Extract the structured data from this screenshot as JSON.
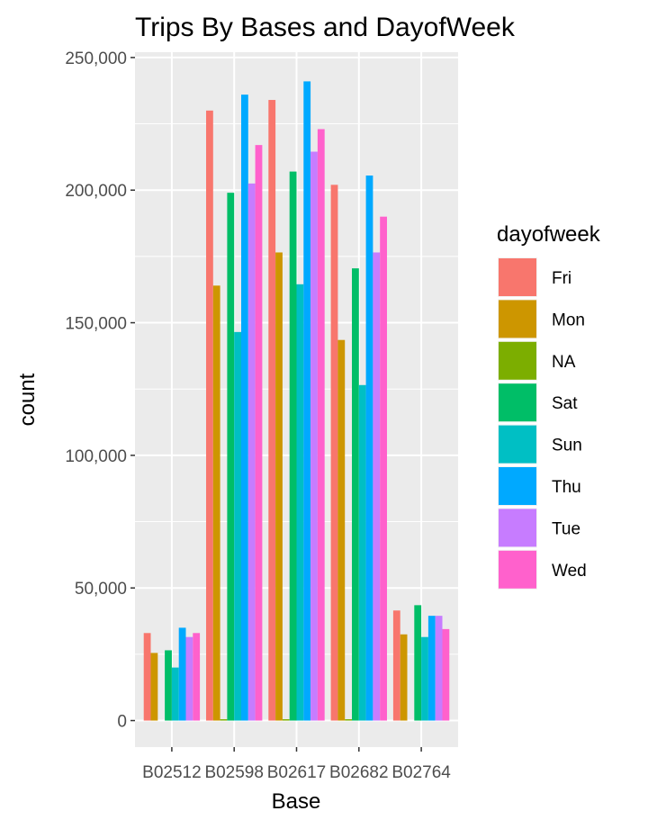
{
  "chart_data": {
    "type": "bar",
    "title": "Trips By Bases and DayofWeek",
    "xlabel": "Base",
    "ylabel": "count",
    "categories": [
      "B02512",
      "B02598",
      "B02617",
      "B02682",
      "B02764"
    ],
    "ylim": [
      -10000,
      252000
    ],
    "yticks": [
      0,
      50000,
      100000,
      150000,
      200000,
      250000
    ],
    "ytick_labels": [
      "0",
      "50,000",
      "100,000",
      "150,000",
      "200,000",
      "250,000"
    ],
    "grid": true,
    "legend_title": "dayofweek",
    "legend_position": "right",
    "series": [
      {
        "name": "Fri",
        "color": "#F8766D",
        "values": [
          33000,
          230000,
          234000,
          202000,
          41500
        ]
      },
      {
        "name": "Mon",
        "color": "#CD9600",
        "values": [
          25500,
          164000,
          176500,
          143500,
          32500
        ]
      },
      {
        "name": "NA",
        "color": "#7CAE00",
        "values": [
          0,
          500,
          500,
          500,
          0
        ]
      },
      {
        "name": "Sat",
        "color": "#00BE67",
        "values": [
          26500,
          199000,
          207000,
          170500,
          43500
        ]
      },
      {
        "name": "Sun",
        "color": "#00BFC4",
        "values": [
          20000,
          146500,
          164500,
          126500,
          31500
        ]
      },
      {
        "name": "Thu",
        "color": "#00A9FF",
        "values": [
          35000,
          236000,
          241000,
          205500,
          39500
        ]
      },
      {
        "name": "Tue",
        "color": "#C77CFF",
        "values": [
          31500,
          202500,
          214500,
          176500,
          39500
        ]
      },
      {
        "name": "Wed",
        "color": "#FF61CC",
        "values": [
          33000,
          217000,
          223000,
          190000,
          34500
        ]
      }
    ]
  }
}
